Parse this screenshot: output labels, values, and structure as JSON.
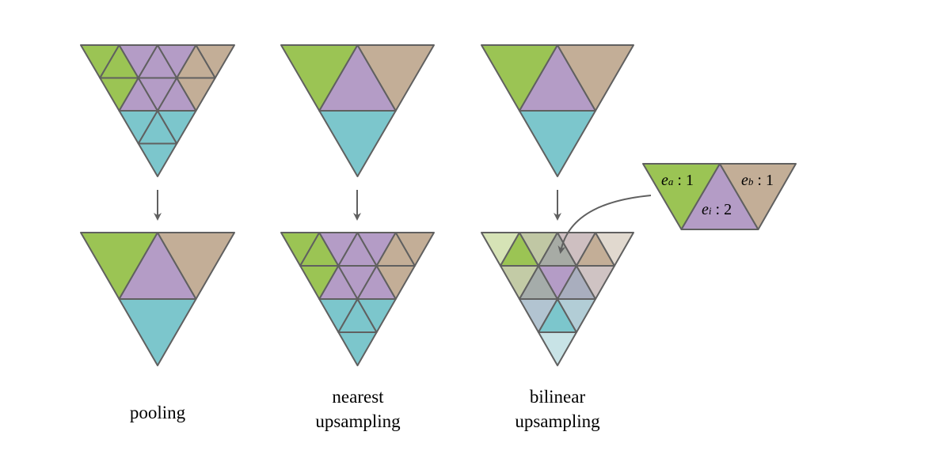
{
  "colors": {
    "green": "#9bc454",
    "purple": "#b49cc6",
    "tan": "#c3ae97",
    "teal": "#7cc6cc",
    "stroke": "#606060"
  },
  "panels": [
    {
      "id": "pooling",
      "caption_lines": [
        "pooling"
      ]
    },
    {
      "id": "nearest",
      "caption_lines": [
        "nearest",
        "upsampling"
      ]
    },
    {
      "id": "bilinear",
      "caption_lines": [
        "bilinear",
        "upsampling"
      ]
    }
  ],
  "inset": {
    "labels": [
      {
        "var": "e",
        "sub": "a",
        "weight": "1"
      },
      {
        "var": "e",
        "sub": "b",
        "weight": "1"
      },
      {
        "var": "e",
        "sub": "i",
        "weight": "2"
      }
    ]
  },
  "bilinear_fine_colors": {
    "r0": [
      "#d6e3b6",
      "#9bc454",
      "#c0c7a4",
      "#a7aba5",
      "#cebfc1",
      "#c3ae97",
      "#e1d9cf"
    ],
    "r1": [
      "#c3cba6",
      "#a5acaa",
      "#b49cc6",
      "#a9aebe",
      "#cfc3c3"
    ],
    "r2": [
      "#b2c4d1",
      "#7cc6cc",
      "#b2cdd6"
    ],
    "r3": [
      "#c8e3e6"
    ]
  }
}
